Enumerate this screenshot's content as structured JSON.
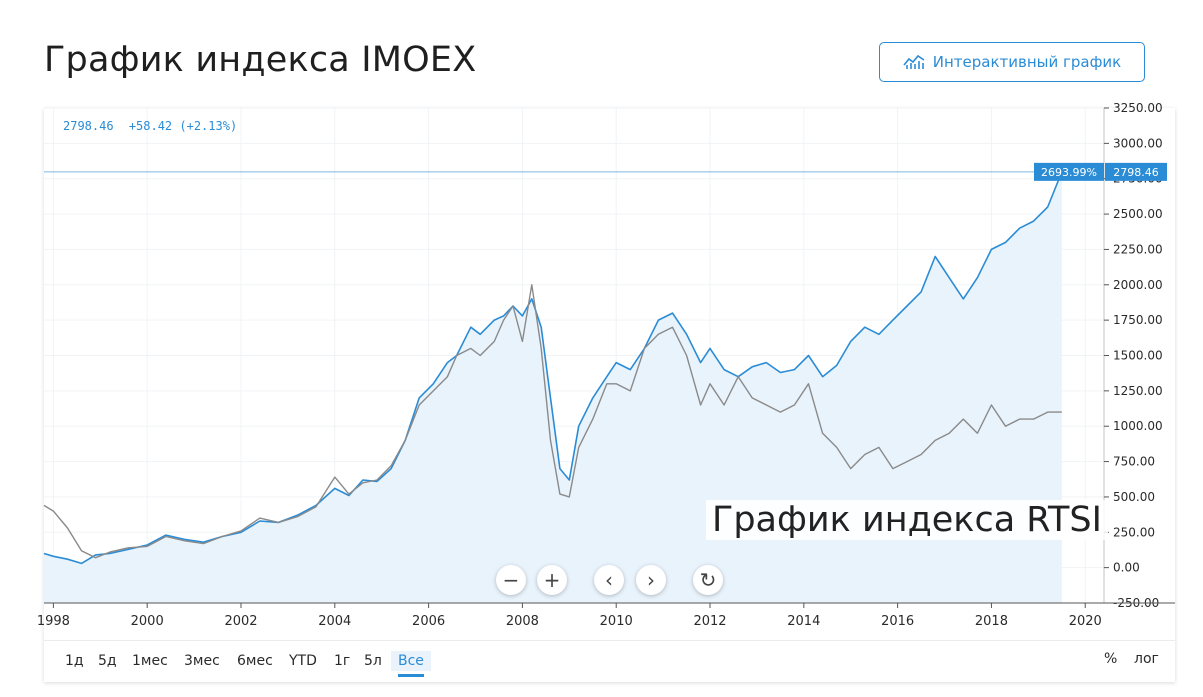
{
  "page": {
    "title": "График индекса IMOEX",
    "interactive_button": "Интерактивный график",
    "overlay_label": "График индекса RTSI"
  },
  "legend": {
    "value": "2798.46",
    "change": "+58.42 (+2.13%)"
  },
  "badges": {
    "percent": "2693.99%",
    "price": "2798.46"
  },
  "controls": {
    "zoom_out": "−",
    "zoom_in": "+",
    "prev": "‹",
    "next": "›",
    "reset": "↻"
  },
  "ranges": [
    "1д",
    "5д",
    "1мес",
    "3мес",
    "6мес",
    "YTD",
    "1г",
    "5л",
    "Все"
  ],
  "range_active": "Все",
  "right_buttons": {
    "percent": "%",
    "log": "лог"
  },
  "colors": {
    "imoex": "#2b8cd6",
    "rtsi": "#8a8a8a",
    "area": "#e9f3fc",
    "accent": "#2b8cd6"
  },
  "chart_data": {
    "type": "line",
    "title": "График индекса IMOEX",
    "x_ticks": [
      "1998",
      "2000",
      "2002",
      "2004",
      "2006",
      "2008",
      "2010",
      "2012",
      "2014",
      "2016",
      "2018",
      "2020"
    ],
    "y_ticks": [
      "-250.00",
      "0.00",
      "250.00",
      "500.00",
      "750.00",
      "1000.00",
      "1250.00",
      "1500.00",
      "1750.00",
      "2000.00",
      "2250.00",
      "2500.00",
      "2750.00",
      "3000.00",
      "3250.00"
    ],
    "ylim": [
      -250,
      3250
    ],
    "xlim": [
      1997.8,
      2020.4
    ],
    "current_value": 2798.46,
    "series": [
      {
        "name": "IMOEX",
        "x": [
          1997.8,
          1998.0,
          1998.3,
          1998.6,
          1998.9,
          1999.2,
          1999.6,
          2000.0,
          2000.4,
          2000.8,
          2001.2,
          2001.6,
          2002.0,
          2002.4,
          2002.8,
          2003.2,
          2003.6,
          2004.0,
          2004.3,
          2004.6,
          2004.9,
          2005.2,
          2005.5,
          2005.8,
          2006.1,
          2006.4,
          2006.6,
          2006.9,
          2007.1,
          2007.4,
          2007.6,
          2007.8,
          2008.0,
          2008.2,
          2008.4,
          2008.6,
          2008.8,
          2009.0,
          2009.2,
          2009.5,
          2009.8,
          2010.0,
          2010.3,
          2010.6,
          2010.9,
          2011.2,
          2011.5,
          2011.8,
          2012.0,
          2012.3,
          2012.6,
          2012.9,
          2013.2,
          2013.5,
          2013.8,
          2014.1,
          2014.4,
          2014.7,
          2015.0,
          2015.3,
          2015.6,
          2015.9,
          2016.2,
          2016.5,
          2016.8,
          2017.1,
          2017.4,
          2017.7,
          2018.0,
          2018.3,
          2018.6,
          2018.9,
          2019.2,
          2019.5
        ],
        "values": [
          100,
          80,
          60,
          30,
          90,
          100,
          130,
          160,
          230,
          200,
          180,
          220,
          250,
          330,
          320,
          370,
          440,
          560,
          510,
          620,
          610,
          700,
          900,
          1200,
          1300,
          1450,
          1500,
          1700,
          1650,
          1750,
          1780,
          1850,
          1780,
          1900,
          1700,
          1200,
          700,
          620,
          1000,
          1200,
          1350,
          1450,
          1400,
          1550,
          1750,
          1800,
          1650,
          1450,
          1550,
          1400,
          1350,
          1420,
          1450,
          1380,
          1400,
          1500,
          1350,
          1430,
          1600,
          1700,
          1650,
          1750,
          1850,
          1950,
          2200,
          2050,
          1900,
          2050,
          2250,
          2300,
          2400,
          2450,
          2550,
          2798
        ]
      },
      {
        "name": "RTSI",
        "x": [
          1997.8,
          1998.0,
          1998.3,
          1998.6,
          1998.9,
          1999.2,
          1999.6,
          2000.0,
          2000.4,
          2000.8,
          2001.2,
          2001.6,
          2002.0,
          2002.4,
          2002.8,
          2003.2,
          2003.6,
          2004.0,
          2004.3,
          2004.6,
          2004.9,
          2005.2,
          2005.5,
          2005.8,
          2006.1,
          2006.4,
          2006.6,
          2006.9,
          2007.1,
          2007.4,
          2007.6,
          2007.8,
          2008.0,
          2008.2,
          2008.4,
          2008.6,
          2008.8,
          2009.0,
          2009.2,
          2009.5,
          2009.8,
          2010.0,
          2010.3,
          2010.6,
          2010.9,
          2011.2,
          2011.5,
          2011.8,
          2012.0,
          2012.3,
          2012.6,
          2012.9,
          2013.2,
          2013.5,
          2013.8,
          2014.1,
          2014.4,
          2014.7,
          2015.0,
          2015.3,
          2015.6,
          2015.9,
          2016.2,
          2016.5,
          2016.8,
          2017.1,
          2017.4,
          2017.7,
          2018.0,
          2018.3,
          2018.6,
          2018.9,
          2019.2,
          2019.5
        ],
        "values": [
          440,
          400,
          280,
          120,
          70,
          110,
          140,
          150,
          220,
          190,
          170,
          220,
          260,
          350,
          320,
          360,
          430,
          640,
          520,
          600,
          620,
          720,
          900,
          1150,
          1250,
          1350,
          1500,
          1550,
          1500,
          1600,
          1750,
          1850,
          1600,
          2000,
          1550,
          900,
          520,
          500,
          850,
          1050,
          1300,
          1300,
          1250,
          1550,
          1650,
          1700,
          1500,
          1150,
          1300,
          1150,
          1350,
          1200,
          1150,
          1100,
          1150,
          1300,
          950,
          850,
          700,
          800,
          850,
          700,
          750,
          800,
          900,
          950,
          1050,
          950,
          1150,
          1000,
          1050,
          1050,
          1100,
          1100
        ]
      }
    ]
  }
}
